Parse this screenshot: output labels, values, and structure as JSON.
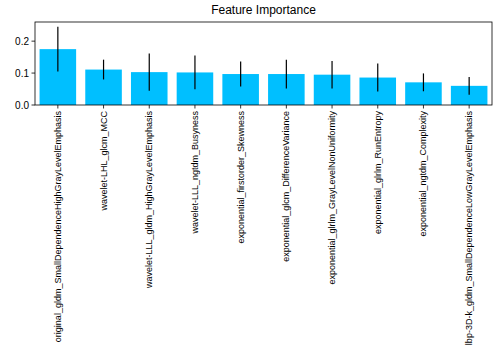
{
  "chart_data": {
    "type": "bar",
    "title": "Feature Importance",
    "categories": [
      "original_gldm_SmallDependenceHighGrayLevelEmphasis",
      "wavelet-LHL_glcm_MCC",
      "wavelet-LLL_gldm_HighGrayLevelEmphasis",
      "wavelet-LLL_ngtdm_Busyness",
      "exponential_firstorder_Skewness",
      "exponential_glcm_DifferenceVariance",
      "exponential_glrlm_GrayLevelNonUniformity",
      "exponential_glrlm_RunEntropy",
      "exponential_ngtdm_Complexity",
      "lbp-3D-k_gldm_SmallDependenceLowGrayLevelEmphasis"
    ],
    "values": [
      0.175,
      0.111,
      0.103,
      0.102,
      0.097,
      0.097,
      0.095,
      0.086,
      0.071,
      0.06
    ],
    "errors": [
      0.07,
      0.031,
      0.058,
      0.053,
      0.039,
      0.045,
      0.043,
      0.044,
      0.028,
      0.028
    ],
    "color": "#00bfff",
    "ylim": [
      0,
      0.26
    ],
    "yticks": [
      {
        "value": 0,
        "label": "0.0"
      },
      0.1,
      0.2
    ],
    "grid": false
  }
}
